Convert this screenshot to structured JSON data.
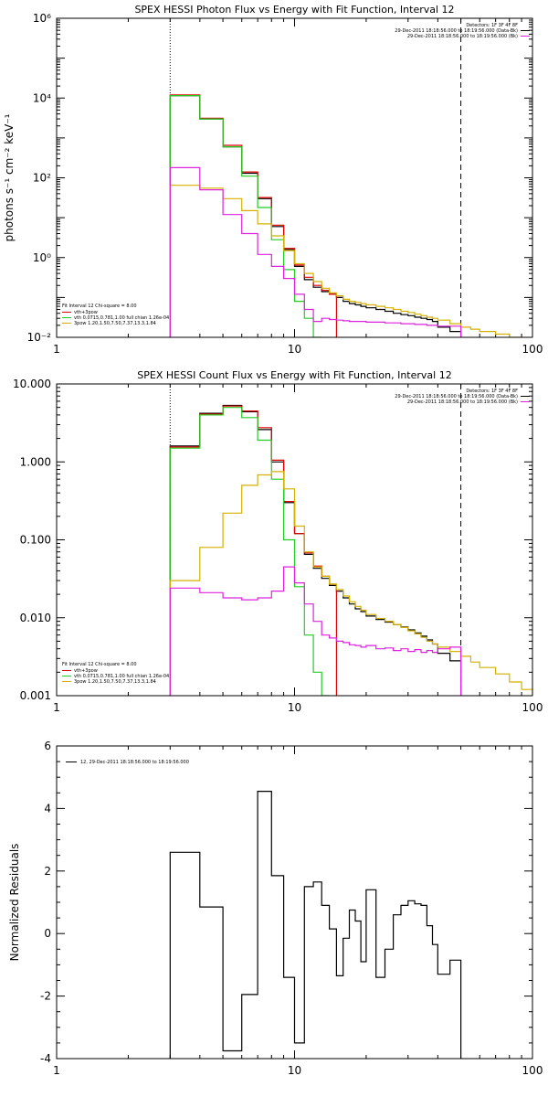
{
  "chart_data": [
    {
      "type": "line",
      "title": "SPEX HESSI Photon Flux vs Energy with Fit Function, Interval 12",
      "ylabel": "photons s⁻¹ cm⁻² keV⁻¹",
      "xlabel": "",
      "x_scale": "log",
      "y_scale": "log",
      "xlim": [
        1,
        100
      ],
      "ylim": [
        0.01,
        1000000
      ],
      "x_ticks": [
        1,
        10,
        100
      ],
      "x_tick_labels": [
        "1",
        "10",
        "100"
      ],
      "y_ticks": [
        0.01,
        1,
        100,
        10000,
        1000000
      ],
      "y_tick_labels": [
        "10⁻²",
        "10⁰",
        "10²",
        "10⁴",
        "10⁶"
      ],
      "vlines": [
        {
          "x": 3,
          "style": "dotted"
        },
        {
          "x": 50,
          "style": "dashed"
        }
      ],
      "legend_top_right": {
        "lines": [
          {
            "text": "Detectors: 1F 3F 4F 8F",
            "color": "#000000"
          },
          {
            "text": "29-Dec-2011 18:18:56.000 to 18:19:56.000 (Data-Bk)",
            "color": "#000000"
          },
          {
            "text": "29-Dec-2011 18:18:56.000 to 18:19:56.000 (Bk)",
            "color": "#dd22dd"
          }
        ]
      },
      "legend_bottom_left": {
        "header": "Fit Interval 12   Chi-square = 8.00",
        "lines": [
          {
            "text": "vth+3pow",
            "color": "#dd0000"
          },
          {
            "text": "vth 0.0715,0.781,1.00  full chian 1.26e-04",
            "color": "#22cc22"
          },
          {
            "text": "3pow 1.20,1.50,7.50,7.37,13.3,1.84",
            "color": "#d4b000"
          }
        ]
      },
      "series": [
        {
          "color": "#000000",
          "edges": [
            3,
            4,
            5,
            6,
            7,
            8,
            9,
            10,
            11,
            12,
            13,
            14,
            15,
            16,
            17,
            18,
            19,
            20,
            22,
            24,
            26,
            28,
            30,
            32,
            34,
            36,
            38,
            40,
            45,
            50
          ],
          "values": [
            11500,
            3000,
            600,
            130,
            30,
            6,
            1.6,
            0.6,
            0.28,
            0.18,
            0.14,
            0.12,
            0.1,
            0.08,
            0.07,
            0.065,
            0.06,
            0.055,
            0.05,
            0.045,
            0.04,
            0.037,
            0.035,
            0.032,
            0.03,
            0.028,
            0.025,
            0.018,
            0.014
          ]
        },
        {
          "color": "#dd0000",
          "edges": [
            3,
            4,
            5,
            6,
            7,
            8,
            9,
            10,
            11,
            12,
            13,
            14,
            15
          ],
          "values": [
            12000,
            3100,
            650,
            140,
            32,
            6.5,
            1.7,
            0.65,
            0.32,
            0.2,
            0.15,
            0.12
          ]
        },
        {
          "color": "#22cc22",
          "edges": [
            3,
            4,
            5,
            6,
            7,
            8,
            9,
            10,
            11,
            12,
            13
          ],
          "values": [
            11500,
            3000,
            600,
            110,
            18,
            2.8,
            0.5,
            0.08,
            0.03,
            0.01
          ]
        },
        {
          "color": "#d4b000",
          "edges": [
            3,
            4,
            5,
            6,
            7,
            8,
            9,
            10,
            11,
            12,
            13,
            14,
            15,
            16,
            17,
            18,
            19,
            20,
            22,
            24,
            26,
            28,
            30,
            32,
            34,
            36,
            38,
            40,
            45,
            50,
            55,
            60,
            70,
            80,
            90,
            100
          ],
          "values": [
            65,
            55,
            30,
            15,
            7,
            3.5,
            1.5,
            0.7,
            0.4,
            0.25,
            0.17,
            0.13,
            0.11,
            0.09,
            0.08,
            0.075,
            0.07,
            0.065,
            0.06,
            0.055,
            0.05,
            0.045,
            0.042,
            0.038,
            0.035,
            0.032,
            0.03,
            0.027,
            0.022,
            0.018,
            0.016,
            0.014,
            0.012,
            0.01,
            0.009
          ]
        },
        {
          "color": "#dd22dd",
          "edges": [
            3,
            4,
            5,
            6,
            7,
            8,
            9,
            10,
            11,
            12,
            13,
            14,
            15,
            16,
            17,
            18,
            19,
            20,
            22,
            24,
            26,
            28,
            30,
            32,
            34,
            36,
            38,
            40,
            45,
            50
          ],
          "values": [
            180,
            50,
            12,
            4,
            1.2,
            0.6,
            0.3,
            0.12,
            0.05,
            0.025,
            0.03,
            0.028,
            0.027,
            0.026,
            0.025,
            0.025,
            0.025,
            0.024,
            0.024,
            0.023,
            0.023,
            0.022,
            0.022,
            0.021,
            0.021,
            0.02,
            0.02,
            0.019,
            0.019
          ]
        }
      ]
    },
    {
      "type": "line",
      "title": "SPEX HESSI Count Flux vs Energy with Fit Function, Interval 12",
      "ylabel": "",
      "xlabel": "",
      "x_scale": "log",
      "y_scale": "log",
      "xlim": [
        1,
        100
      ],
      "ylim": [
        0.001,
        10
      ],
      "x_ticks": [
        1,
        10,
        100
      ],
      "x_tick_labels": [
        "1",
        "10",
        "100"
      ],
      "y_ticks": [
        0.001,
        0.01,
        0.1,
        1,
        10
      ],
      "y_tick_labels": [
        "0.001",
        "0.010",
        "0.100",
        "1.000",
        "10.000"
      ],
      "vlines": [
        {
          "x": 3,
          "style": "dotted"
        },
        {
          "x": 50,
          "style": "dashed"
        }
      ],
      "legend_top_right": {
        "lines": [
          {
            "text": "Detectors: 1F 3F 4F 8F",
            "color": "#000000"
          },
          {
            "text": "29-Dec-2011 18:18:56.000 to 18:19:56.000 (Data-Bk)",
            "color": "#000000"
          },
          {
            "text": "29-Dec-2011 18:18:56.000 to 18:19:56.000 (Bk)",
            "color": "#dd22dd"
          }
        ]
      },
      "legend_bottom_left": {
        "header": "Fit Interval 12   Chi-square = 8.00",
        "lines": [
          {
            "text": "vth+3pow",
            "color": "#dd0000"
          },
          {
            "text": "vth 0.0715,0.781,1.00  full chian 1.26e-04",
            "color": "#22cc22"
          },
          {
            "text": "3pow 1.20,1.50,7.50,7.37,13.3,1.84",
            "color": "#d4b000"
          }
        ]
      },
      "series": [
        {
          "color": "#000000",
          "edges": [
            3,
            4,
            5,
            6,
            7,
            8,
            9,
            10,
            11,
            12,
            13,
            14,
            15,
            16,
            17,
            18,
            19,
            20,
            22,
            24,
            26,
            28,
            30,
            32,
            34,
            36,
            38,
            40,
            45,
            50
          ],
          "values": [
            1.6,
            4.2,
            5.3,
            4.4,
            2.6,
            1.0,
            0.3,
            0.12,
            0.065,
            0.043,
            0.032,
            0.026,
            0.022,
            0.018,
            0.015,
            0.013,
            0.012,
            0.0105,
            0.0095,
            0.0088,
            0.0082,
            0.0076,
            0.007,
            0.0064,
            0.0058,
            0.0052,
            0.0046,
            0.0035,
            0.0028
          ]
        },
        {
          "color": "#dd0000",
          "edges": [
            3,
            4,
            5,
            6,
            7,
            8,
            9,
            10,
            11,
            12,
            13,
            14,
            15
          ],
          "values": [
            1.55,
            4.1,
            5.2,
            4.5,
            2.75,
            1.05,
            0.31,
            0.12,
            0.068,
            0.046,
            0.034,
            0.027
          ]
        },
        {
          "color": "#22cc22",
          "edges": [
            3,
            4,
            5,
            6,
            7,
            8,
            9,
            10,
            11,
            12,
            13,
            14
          ],
          "values": [
            1.5,
            4.0,
            5.0,
            3.7,
            1.9,
            0.6,
            0.1,
            0.025,
            0.006,
            0.002,
            0.001
          ]
        },
        {
          "color": "#d4b000",
          "edges": [
            3,
            4,
            5,
            6,
            7,
            8,
            9,
            10,
            11,
            12,
            13,
            14,
            15,
            16,
            17,
            18,
            19,
            20,
            22,
            24,
            26,
            28,
            30,
            32,
            34,
            36,
            38,
            40,
            45,
            50,
            55,
            60,
            70,
            80,
            90,
            100
          ],
          "values": [
            0.03,
            0.08,
            0.22,
            0.5,
            0.68,
            0.75,
            0.45,
            0.15,
            0.07,
            0.045,
            0.034,
            0.027,
            0.023,
            0.019,
            0.016,
            0.014,
            0.0125,
            0.011,
            0.0098,
            0.009,
            0.0082,
            0.0075,
            0.0068,
            0.0062,
            0.0056,
            0.005,
            0.0046,
            0.0042,
            0.0037,
            0.0032,
            0.0027,
            0.0023,
            0.0019,
            0.0015,
            0.0012
          ]
        },
        {
          "color": "#dd22dd",
          "edges": [
            3,
            4,
            5,
            6,
            7,
            8,
            9,
            10,
            11,
            12,
            13,
            14,
            15,
            16,
            17,
            18,
            19,
            20,
            22,
            24,
            26,
            28,
            30,
            32,
            34,
            36,
            38,
            40,
            45,
            50
          ],
          "values": [
            0.024,
            0.021,
            0.018,
            0.017,
            0.018,
            0.022,
            0.045,
            0.028,
            0.015,
            0.009,
            0.006,
            0.0055,
            0.005,
            0.0048,
            0.0045,
            0.0044,
            0.0042,
            0.0044,
            0.004,
            0.0041,
            0.0038,
            0.004,
            0.0037,
            0.0039,
            0.0036,
            0.0038,
            0.0036,
            0.004,
            0.0042
          ]
        }
      ]
    },
    {
      "type": "line",
      "title": "",
      "ylabel": "Normalized Residuals",
      "xlabel": "",
      "x_scale": "log",
      "y_scale": "linear",
      "xlim": [
        1,
        100
      ],
      "ylim": [
        -4,
        6
      ],
      "x_ticks": [
        1,
        10,
        100
      ],
      "x_tick_labels": [
        "1",
        "10",
        "100"
      ],
      "y_ticks": [
        -4,
        -2,
        0,
        2,
        4,
        6
      ],
      "y_tick_labels": [
        "-4",
        "-2",
        "0",
        "2",
        "4",
        "6"
      ],
      "vlines": [],
      "legend_top_left": {
        "text": "12, 29-Dec-2011 18:18:56.000 to 18:19:56.000",
        "color": "#000000"
      },
      "series": [
        {
          "color": "#000000",
          "edges": [
            3,
            4,
            5,
            6,
            7,
            8,
            9,
            10,
            11,
            12,
            13,
            14,
            15,
            16,
            17,
            18,
            19,
            20,
            22,
            24,
            26,
            28,
            30,
            32,
            34,
            36,
            38,
            40,
            45,
            50
          ],
          "values": [
            2.6,
            0.85,
            -3.75,
            -1.95,
            4.55,
            1.85,
            -1.4,
            -3.5,
            1.5,
            1.65,
            0.9,
            0.15,
            -1.35,
            -0.15,
            0.75,
            0.4,
            -0.9,
            1.4,
            -1.4,
            -0.5,
            0.6,
            0.9,
            1.05,
            0.95,
            0.9,
            0.25,
            -0.35,
            -1.3,
            -0.85
          ]
        }
      ]
    }
  ]
}
